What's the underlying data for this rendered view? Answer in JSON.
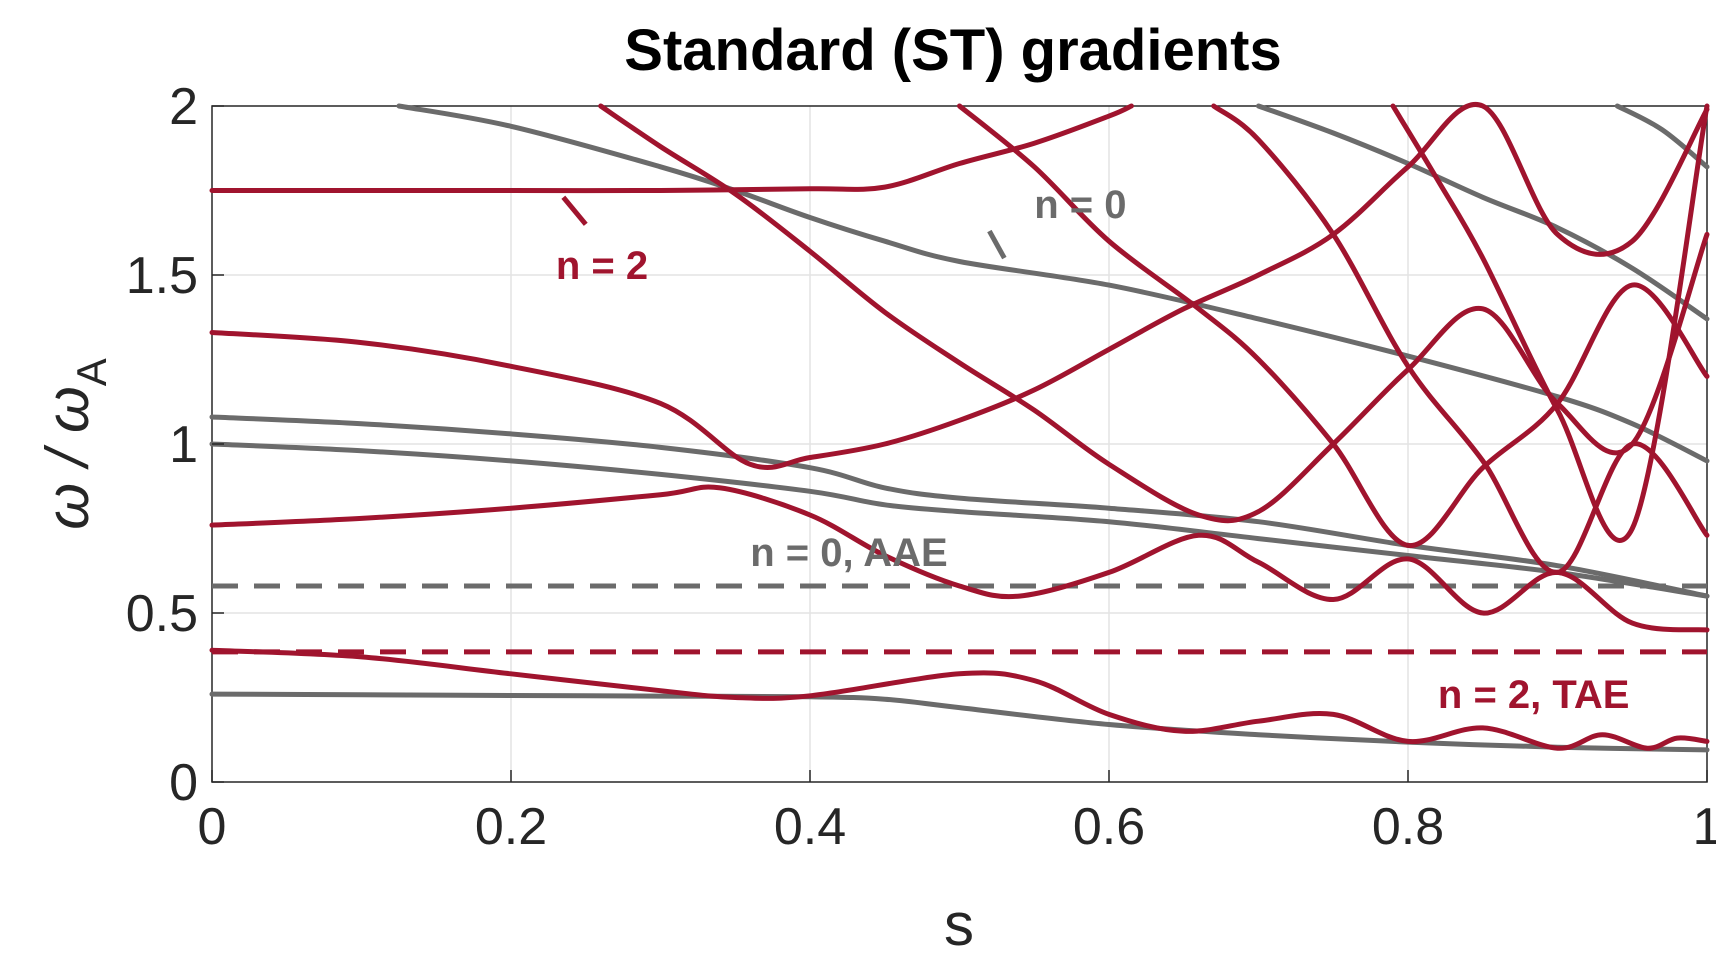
{
  "chart_data": {
    "type": "line",
    "title": "Standard (ST) gradients",
    "xlabel": "s",
    "ylabel_main": "ω / ω",
    "ylabel_sub": "A",
    "xlim": [
      0,
      1
    ],
    "ylim": [
      0,
      2
    ],
    "xticks": [
      0,
      0.2,
      0.4,
      0.6,
      0.8,
      1
    ],
    "xtick_labels": [
      "0",
      "0.2",
      "0.4",
      "0.6",
      "0.8",
      "1"
    ],
    "yticks": [
      0,
      0.5,
      1,
      1.5,
      2
    ],
    "ytick_labels": [
      "0",
      "0.5",
      "1",
      "1.5",
      "2"
    ],
    "grid": true,
    "colors": {
      "n0": "#6b6b6b",
      "n2": "#a0142e"
    },
    "dashed_lines": [
      {
        "group": "n0",
        "y": 0.58
      },
      {
        "group": "n2",
        "y": 0.385
      }
    ],
    "annotations": [
      {
        "text": "n = 2",
        "group": "n2",
        "x": 0.23,
        "y": 1.53,
        "pointer": [
          [
            0.235,
            1.73
          ],
          [
            0.25,
            1.65
          ]
        ]
      },
      {
        "text": "n = 0",
        "group": "n0",
        "x": 0.55,
        "y": 1.71,
        "pointer": [
          [
            0.52,
            1.63
          ],
          [
            0.53,
            1.55
          ]
        ]
      },
      {
        "text": "n = 0, AAE",
        "group": "n0",
        "x": 0.36,
        "y": 0.68,
        "pointer": null
      },
      {
        "text": "n = 2, TAE",
        "group": "n2",
        "x": 0.82,
        "y": 0.26,
        "pointer": null
      }
    ],
    "series": [
      {
        "group": "n0",
        "x": [
          0,
          0.1,
          0.2,
          0.3,
          0.4,
          0.45,
          0.5,
          0.6,
          0.7,
          0.8,
          0.9,
          1.0
        ],
        "y": [
          0.26,
          0.258,
          0.256,
          0.254,
          0.252,
          0.245,
          0.22,
          0.17,
          0.14,
          0.118,
          0.103,
          0.095
        ]
      },
      {
        "group": "n0",
        "x": [
          0,
          0.1,
          0.2,
          0.3,
          0.4,
          0.45,
          0.5,
          0.6,
          0.7,
          0.8,
          0.9,
          1.0
        ],
        "y": [
          1.0,
          0.98,
          0.95,
          0.91,
          0.86,
          0.82,
          0.8,
          0.77,
          0.72,
          0.67,
          0.62,
          0.55
        ]
      },
      {
        "group": "n0",
        "x": [
          0,
          0.1,
          0.2,
          0.3,
          0.4,
          0.45,
          0.5,
          0.6,
          0.7,
          0.8,
          0.9,
          1.0
        ],
        "y": [
          1.08,
          1.06,
          1.03,
          0.99,
          0.93,
          0.87,
          0.84,
          0.81,
          0.77,
          0.7,
          0.64,
          0.55
        ]
      },
      {
        "group": "n0",
        "x": [
          0.125,
          0.2,
          0.3,
          0.35,
          0.4,
          0.45,
          0.5,
          0.6,
          0.7,
          0.8,
          0.9,
          0.95,
          1.0
        ],
        "y": [
          2.0,
          1.94,
          1.82,
          1.75,
          1.67,
          1.6,
          1.54,
          1.47,
          1.37,
          1.26,
          1.14,
          1.06,
          0.95
        ]
      },
      {
        "group": "n0",
        "x": [
          0.7,
          0.75,
          0.8,
          0.85,
          0.9,
          0.95,
          1.0
        ],
        "y": [
          2.0,
          1.92,
          1.83,
          1.73,
          1.64,
          1.52,
          1.37
        ]
      },
      {
        "group": "n0",
        "x": [
          0.94,
          0.97,
          1.0
        ],
        "y": [
          2.0,
          1.93,
          1.82
        ]
      },
      {
        "group": "n2",
        "x": [
          0,
          0.1,
          0.2,
          0.3,
          0.35,
          0.4,
          0.5,
          0.55,
          0.6,
          0.65,
          0.7,
          0.75,
          0.8,
          0.85,
          0.9,
          0.93,
          0.96,
          0.98,
          1.0
        ],
        "y": [
          0.39,
          0.37,
          0.32,
          0.27,
          0.25,
          0.255,
          0.32,
          0.3,
          0.2,
          0.15,
          0.18,
          0.2,
          0.12,
          0.16,
          0.1,
          0.14,
          0.1,
          0.13,
          0.12
        ]
      },
      {
        "group": "n2",
        "x": [
          0,
          0.1,
          0.2,
          0.3,
          0.34,
          0.4,
          0.45,
          0.5,
          0.54,
          0.6,
          0.66,
          0.7,
          0.75,
          0.8,
          0.85,
          0.9,
          0.95,
          1.0
        ],
        "y": [
          0.76,
          0.78,
          0.81,
          0.85,
          0.87,
          0.79,
          0.67,
          0.58,
          0.55,
          0.62,
          0.73,
          0.65,
          0.54,
          0.66,
          0.5,
          0.62,
          0.47,
          0.45
        ]
      },
      {
        "group": "n2",
        "x": [
          0,
          0.1,
          0.2,
          0.3,
          0.36,
          0.4,
          0.45,
          0.5,
          0.55,
          0.6,
          0.65,
          0.7,
          0.75,
          0.8,
          0.85,
          0.9,
          0.95,
          1.0
        ],
        "y": [
          1.33,
          1.3,
          1.23,
          1.12,
          0.94,
          0.96,
          1.0,
          1.07,
          1.16,
          1.28,
          1.4,
          1.5,
          1.62,
          1.82,
          2.0,
          1.62,
          1.6,
          1.99
        ]
      },
      {
        "group": "n2",
        "x": [
          0,
          0.1,
          0.2,
          0.3,
          0.4,
          0.45,
          0.5,
          0.55,
          0.6,
          0.615
        ],
        "y": [
          1.75,
          1.75,
          1.75,
          1.75,
          1.755,
          1.76,
          1.83,
          1.89,
          1.97,
          2.0
        ]
      },
      {
        "group": "n2",
        "x": [
          0.26,
          0.3,
          0.35,
          0.4,
          0.45,
          0.5,
          0.55,
          0.6,
          0.66,
          0.7,
          0.75,
          0.8,
          0.85,
          0.9,
          0.95,
          1.0
        ],
        "y": [
          2.0,
          1.88,
          1.74,
          1.57,
          1.39,
          1.24,
          1.1,
          0.94,
          0.79,
          0.8,
          1.0,
          1.22,
          1.4,
          1.12,
          1.0,
          1.62
        ]
      },
      {
        "group": "n2",
        "x": [
          0.5,
          0.55,
          0.6,
          0.66,
          0.7,
          0.75,
          0.8,
          0.85,
          0.9,
          0.95,
          1.0
        ],
        "y": [
          2.0,
          1.82,
          1.6,
          1.4,
          1.25,
          1.0,
          0.7,
          0.93,
          1.12,
          1.47,
          1.2
        ]
      },
      {
        "group": "n2",
        "x": [
          0.67,
          0.7,
          0.75,
          0.8,
          0.85,
          0.9,
          0.95,
          1.0
        ],
        "y": [
          2.0,
          1.9,
          1.62,
          1.23,
          0.95,
          0.62,
          1.0,
          0.73
        ]
      },
      {
        "group": "n2",
        "x": [
          0.79,
          0.82,
          0.85,
          0.9,
          0.95,
          1.0
        ],
        "y": [
          2.0,
          1.78,
          1.55,
          1.1,
          0.75,
          2.0
        ]
      }
    ]
  }
}
